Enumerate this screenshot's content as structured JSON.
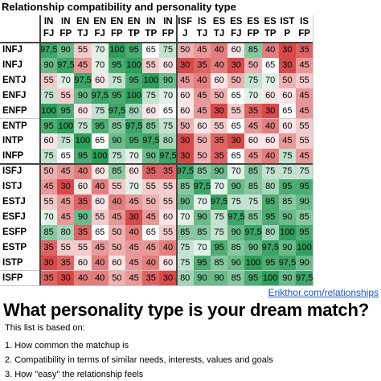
{
  "title": "Relationship compatibility and personality type",
  "columns": [
    [
      "IN",
      "FJ"
    ],
    [
      "IN",
      "FP"
    ],
    [
      "EN",
      "TJ"
    ],
    [
      "EN",
      "FJ"
    ],
    [
      "EN",
      "FP"
    ],
    [
      "EN",
      "TP"
    ],
    [
      "IN",
      "TP"
    ],
    [
      "IN",
      "FP"
    ],
    [
      "ISF",
      "J"
    ],
    [
      "IS",
      "TJ"
    ],
    [
      "ES",
      "TJ"
    ],
    [
      "ES",
      "FJ"
    ],
    [
      "ES",
      "FP"
    ],
    [
      "ES",
      "TP"
    ],
    [
      "IST",
      "P"
    ],
    [
      "IS",
      "FP"
    ]
  ],
  "rows": [
    {
      "label": "INFJ",
      "values": [
        "97,5",
        "90",
        "55",
        "70",
        "100",
        "95",
        "65",
        "75",
        "50",
        "45",
        "40",
        "60",
        "85",
        "40",
        "30",
        "35"
      ]
    },
    {
      "label": "INFJ",
      "values": [
        "90",
        "97,5",
        "45",
        "70",
        "95",
        "100",
        "55",
        "60",
        "30",
        "35",
        "40",
        "30",
        "50",
        "65",
        "30",
        "45"
      ]
    },
    {
      "label": "ENTJ",
      "values": [
        "55",
        "70",
        "97,5",
        "60",
        "75",
        "95",
        "100",
        "90",
        "45",
        "40",
        "60",
        "50",
        "75",
        "70",
        "50",
        "55"
      ]
    },
    {
      "label": "ENFJ",
      "values": [
        "75",
        "55",
        "90",
        "97,5",
        "95",
        "100",
        "75",
        "70",
        "60",
        "45",
        "50",
        "65",
        "70",
        "60",
        "60",
        "45"
      ]
    },
    {
      "label": "ENFP",
      "values": [
        "100",
        "95",
        "60",
        "75",
        "97,5",
        "80",
        "60",
        "65",
        "60",
        "45",
        "30",
        "55",
        "35",
        "30",
        "65",
        "45"
      ]
    },
    {
      "label": "ENTP",
      "values": [
        "95",
        "100",
        "75",
        "95",
        "85",
        "97,5",
        "85",
        "75",
        "50",
        "60",
        "55",
        "65",
        "45",
        "40",
        "60",
        "55"
      ]
    },
    {
      "label": "INTP",
      "values": [
        "60",
        "75",
        "100",
        "65",
        "90",
        "95",
        "97,5",
        "80",
        "30",
        "50",
        "35",
        "30",
        "60",
        "60",
        "45",
        "55"
      ]
    },
    {
      "label": "INFP",
      "values": [
        "75",
        "65",
        "95",
        "100",
        "75",
        "70",
        "90",
        "97,5",
        "30",
        "50",
        "35",
        "65",
        "45",
        "40",
        "75",
        "45"
      ]
    },
    {
      "label": "ISFJ",
      "values": [
        "50",
        "45",
        "40",
        "60",
        "85",
        "60",
        "35",
        "35",
        "97,5",
        "85",
        "90",
        "70",
        "85",
        "75",
        "75",
        "75"
      ]
    },
    {
      "label": "ISTJ",
      "values": [
        "45",
        "30",
        "60",
        "40",
        "55",
        "70",
        "55",
        "55",
        "85",
        "97,5",
        "70",
        "90",
        "85",
        "80",
        "95",
        "95"
      ]
    },
    {
      "label": "ESTJ",
      "values": [
        "55",
        "45",
        "35",
        "60",
        "40",
        "45",
        "50",
        "55",
        "90",
        "70",
        "97,5",
        "75",
        "75",
        "95",
        "85",
        "90"
      ]
    },
    {
      "label": "ESFJ",
      "values": [
        "70",
        "45",
        "90",
        "55",
        "45",
        "30",
        "45",
        "60",
        "70",
        "90",
        "75",
        "97,5",
        "85",
        "95",
        "90",
        "85"
      ]
    },
    {
      "label": "ESFP",
      "values": [
        "85",
        "80",
        "35",
        "65",
        "50",
        "40",
        "65",
        "55",
        "85",
        "85",
        "75",
        "90",
        "97,5",
        "80",
        "100",
        "95"
      ]
    },
    {
      "label": "ESTP",
      "values": [
        "35",
        "55",
        "55",
        "45",
        "50",
        "45",
        "45",
        "40",
        "75",
        "70",
        "95",
        "85",
        "90",
        "97,5",
        "90",
        "100"
      ]
    },
    {
      "label": "ISTP",
      "values": [
        "30",
        "35",
        "60",
        "40",
        "60",
        "45",
        "40",
        "60",
        "75",
        "95",
        "85",
        "90",
        "100",
        "95",
        "97,5",
        "90"
      ]
    },
    {
      "label": "ISFP",
      "values": [
        "35",
        "30",
        "40",
        "40",
        "50",
        "45",
        "35",
        "30",
        "80",
        "90",
        "90",
        "85",
        "95",
        "100",
        "90",
        "97,5"
      ]
    }
  ],
  "credit": "Erikthor.com/relationships",
  "headline": "What personality type is your dream match?",
  "intro": "This list is based on:",
  "points": [
    "1. How common the matchup is",
    "2. Compatibility in terms of similar needs, interests, values and goals",
    "3. How \"easy\" the relationship feels"
  ],
  "colors": {
    "low": "#d64a4a",
    "mid": "#ffffff",
    "high": "#2e9e5b",
    "link": "#1a56c9"
  }
}
